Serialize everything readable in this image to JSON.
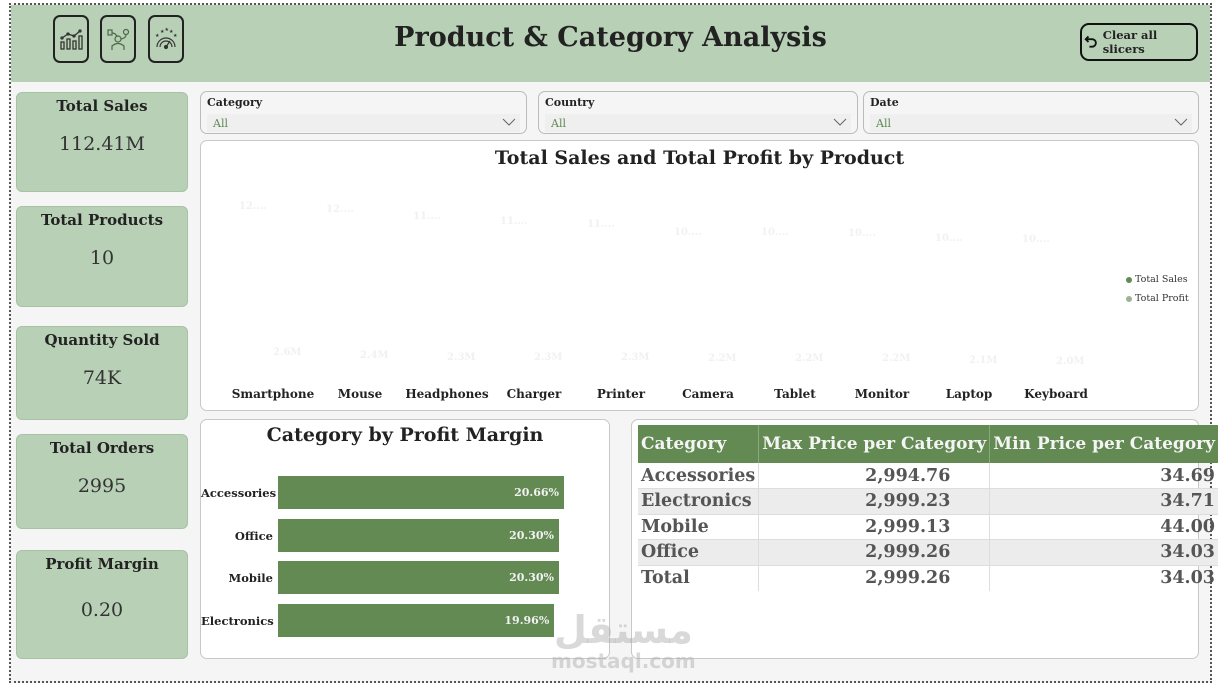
{
  "header": {
    "title": "Product & Category Analysis",
    "clear_button_label": "Clear all slicers",
    "nav_icons": [
      "chart-growth-icon",
      "analyst-person-icon",
      "gauge-rating-icon"
    ]
  },
  "kpis": [
    {
      "label": "Total Sales",
      "value": "112.41M"
    },
    {
      "label": "Total Products",
      "value": "10"
    },
    {
      "label": "Quantity Sold",
      "value": "74K"
    },
    {
      "label": "Total Orders",
      "value": "2995"
    },
    {
      "label": "Profit Margin",
      "value": "0.20"
    }
  ],
  "slicers": [
    {
      "label": "Category",
      "value": "All"
    },
    {
      "label": "Country",
      "value": "All"
    },
    {
      "label": "Date",
      "value": "All"
    }
  ],
  "colors": {
    "header_bg": "#b8d0b6",
    "sales_bar": "#648a54",
    "profit_bar": "#9cb491",
    "table_header": "#648a54"
  },
  "chart_data": [
    {
      "type": "bar",
      "title": "Total Sales and Total Profit by Product",
      "categories": [
        "Smartphone",
        "Mouse",
        "Headphones",
        "Charger",
        "Printer",
        "Camera",
        "Tablet",
        "Monitor",
        "Laptop",
        "Keyboard"
      ],
      "series": [
        {
          "name": "Total Sales",
          "values": [
            12.3,
            12.1,
            11.6,
            11.3,
            11.1,
            10.6,
            10.6,
            10.5,
            10.2,
            10.1
          ],
          "labels": [
            "12....",
            "12....",
            "11....",
            "11....",
            "11....",
            "10....",
            "10....",
            "10....",
            "10....",
            "10...."
          ]
        },
        {
          "name": "Total Profit",
          "values": [
            2.6,
            2.4,
            2.3,
            2.3,
            2.3,
            2.2,
            2.2,
            2.2,
            2.1,
            2.0
          ],
          "labels": [
            "2.6M",
            "2.4M",
            "2.3M",
            "2.3M",
            "2.3M",
            "2.2M",
            "2.2M",
            "2.2M",
            "2.1M",
            "2.0M"
          ]
        }
      ],
      "xlabel": "",
      "ylabel": "",
      "legend_position": "right",
      "grid": false
    },
    {
      "type": "bar",
      "orientation": "horizontal",
      "title": "Category by Profit Margin",
      "categories": [
        "Accessories",
        "Office",
        "Mobile",
        "Electronics"
      ],
      "values": [
        20.66,
        20.3,
        20.3,
        19.96
      ],
      "labels": [
        "20.66%",
        "20.30%",
        "20.30%",
        "19.96%"
      ],
      "grid": false
    },
    {
      "type": "table",
      "columns": [
        "Category",
        "Max Price per Category",
        "Min Price per Category"
      ],
      "rows": [
        [
          "Accessories",
          "2,994.76",
          "34.69"
        ],
        [
          "Electronics",
          "2,999.23",
          "34.71"
        ],
        [
          "Mobile",
          "2,999.13",
          "44.00"
        ],
        [
          "Office",
          "2,999.26",
          "34.03"
        ],
        [
          "Total",
          "2,999.26",
          "34.03"
        ]
      ]
    }
  ],
  "legend": {
    "sales": "Total Sales",
    "profit": "Total Profit"
  },
  "watermark": {
    "arabic": "مستقل",
    "latin": "mostaql.com"
  }
}
